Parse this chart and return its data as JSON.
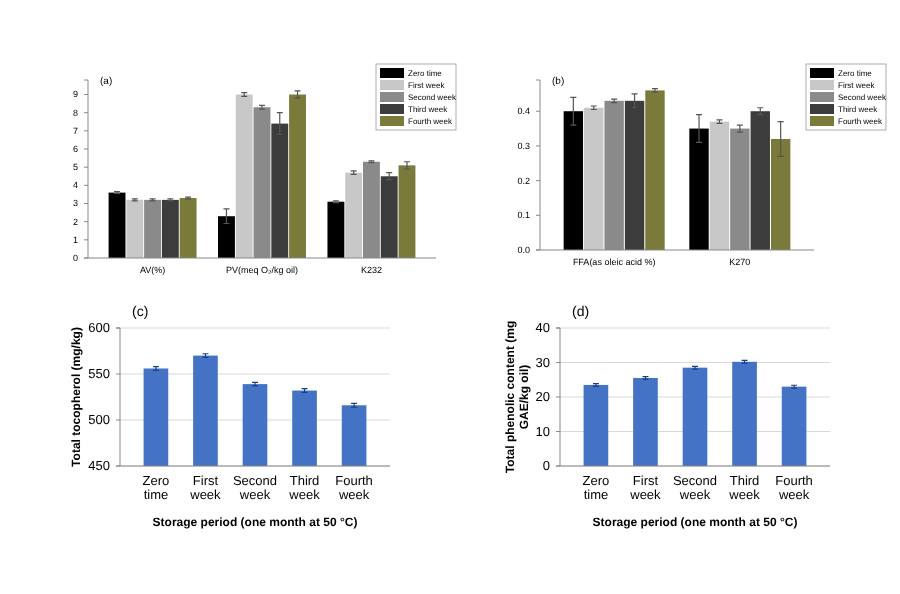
{
  "chart_data": [
    {
      "type": "bar",
      "title": "(a)",
      "categories": [
        "AV(%)",
        "PV(meq O₂/kg oil)",
        "K232"
      ],
      "ylim": [
        0,
        9.8
      ],
      "yticks": [
        0,
        1,
        2,
        3,
        4,
        5,
        6,
        7,
        8,
        9
      ],
      "grid": false,
      "legend": "top right",
      "series": [
        {
          "name": "Zero time",
          "color": "#000000",
          "values": [
            3.6,
            2.3,
            3.1
          ],
          "errors": [
            0.05,
            0.4,
            0.05
          ]
        },
        {
          "name": "First week",
          "color": "#c8c8c8",
          "values": [
            3.2,
            9.0,
            4.7
          ],
          "errors": [
            0.05,
            0.1,
            0.1
          ]
        },
        {
          "name": "Second week",
          "color": "#8a8a8a",
          "values": [
            3.2,
            8.3,
            5.3
          ],
          "errors": [
            0.05,
            0.1,
            0.05
          ]
        },
        {
          "name": "Third week",
          "color": "#3c3c3c",
          "values": [
            3.2,
            7.4,
            4.5
          ],
          "errors": [
            0.05,
            0.6,
            0.2
          ]
        },
        {
          "name": "Fourth week",
          "color": "#7a7a3a",
          "values": [
            3.3,
            9.0,
            5.1
          ],
          "errors": [
            0.05,
            0.2,
            0.2
          ]
        }
      ]
    },
    {
      "type": "bar",
      "title": "(b)",
      "categories": [
        "FFA(as oleic acid %)",
        "K270"
      ],
      "ylim": [
        0,
        0.49
      ],
      "yticks": [
        {
          "value": 0,
          "label": "0.0"
        },
        0.1,
        0.2,
        0.3,
        0.4
      ],
      "grid": false,
      "legend": "top right",
      "series": [
        {
          "name": "Zero time",
          "color": "#000000",
          "values": [
            0.4,
            0.35
          ],
          "errors": [
            0.04,
            0.04
          ]
        },
        {
          "name": "First week",
          "color": "#c8c8c8",
          "values": [
            0.41,
            0.37
          ],
          "errors": [
            0.005,
            0.005
          ]
        },
        {
          "name": "Second week",
          "color": "#8a8a8a",
          "values": [
            0.43,
            0.35
          ],
          "errors": [
            0.005,
            0.01
          ]
        },
        {
          "name": "Third week",
          "color": "#3c3c3c",
          "values": [
            0.43,
            0.4
          ],
          "errors": [
            0.02,
            0.01
          ]
        },
        {
          "name": "Fourth week",
          "color": "#7a7a3a",
          "values": [
            0.46,
            0.32
          ],
          "errors": [
            0.005,
            0.05
          ]
        }
      ]
    },
    {
      "type": "bar",
      "title": "(c)",
      "categories": [
        "Zero time",
        "First week",
        "Second week",
        "Third week",
        "Fourth week"
      ],
      "values": [
        556,
        570,
        539,
        532,
        516
      ],
      "errors": [
        2,
        2,
        2,
        2,
        2
      ],
      "color": "#4472c4",
      "ylim": [
        450,
        600
      ],
      "yticks": [
        450,
        500,
        550,
        600
      ],
      "grid": "y",
      "ylabel": "Total tocopherol (mg/kg)",
      "xlabel": "Storage period (one month at 50 °C)"
    },
    {
      "type": "bar",
      "title": "(d)",
      "categories": [
        "Zero time",
        "First week",
        "Second week",
        "Third week",
        "Fourth week"
      ],
      "values": [
        23.5,
        25.5,
        28.5,
        30.2,
        23
      ],
      "errors": [
        0.4,
        0.4,
        0.4,
        0.4,
        0.4
      ],
      "color": "#4472c4",
      "ylim": [
        0,
        40
      ],
      "yticks": [
        0,
        10,
        20,
        30,
        40
      ],
      "grid": "y",
      "ylabel": "Total phenolic content (mg GAE/kg oil)",
      "xlabel": "Storage period (one month at 50 °C)"
    }
  ]
}
